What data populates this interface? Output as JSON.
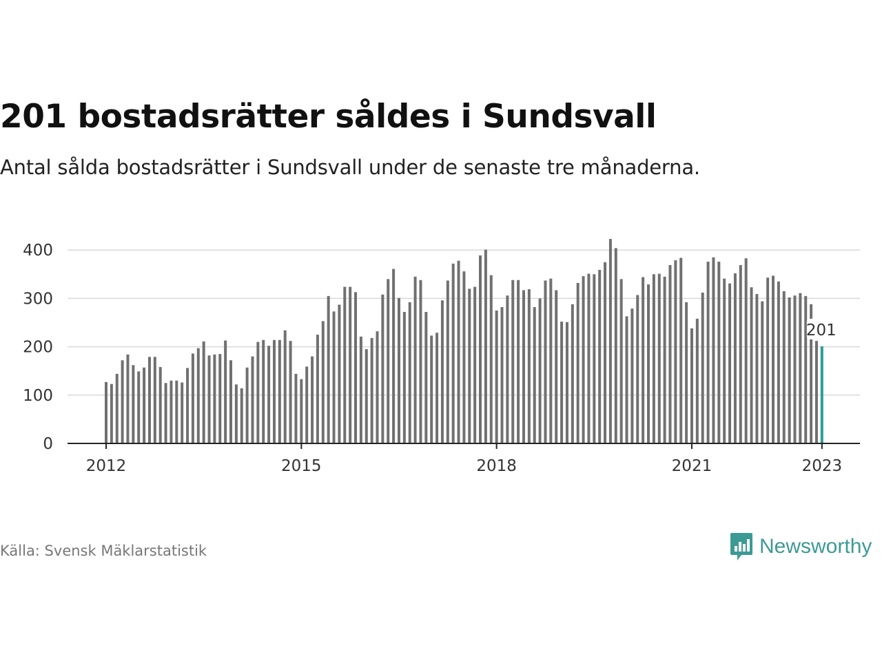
{
  "title": "201 bostadsrätter såldes i Sundsvall",
  "subtitle": "Antal sålda bostadsrätter i Sundsvall under de senaste tre månaderna.",
  "source": "Källa: Svensk Mäklarstatistik",
  "brand": {
    "name": "Newsworthy",
    "icon": "newsworthy-logo-icon",
    "color": "#3c9a94"
  },
  "chart_data": {
    "type": "bar",
    "x_start": "2012-01",
    "x_end": "2023-01",
    "x_ticks": [
      "2012",
      "2015",
      "2018",
      "2021",
      "2023"
    ],
    "y_ticks": [
      "0",
      "100",
      "200",
      "300",
      "400"
    ],
    "ylim": [
      0,
      430
    ],
    "grid": true,
    "bar_color": "#707070",
    "highlight_color": "#2a9d96",
    "annotation": {
      "label": "201",
      "value": 201
    },
    "values": [
      127,
      123,
      144,
      172,
      184,
      162,
      149,
      157,
      179,
      179,
      158,
      125,
      130,
      130,
      126,
      156,
      186,
      197,
      211,
      182,
      184,
      185,
      213,
      172,
      122,
      114,
      157,
      180,
      210,
      214,
      202,
      214,
      214,
      234,
      212,
      144,
      133,
      159,
      180,
      225,
      253,
      305,
      273,
      287,
      324,
      324,
      313,
      221,
      195,
      218,
      232,
      308,
      340,
      361,
      301,
      272,
      292,
      345,
      338,
      272,
      223,
      229,
      296,
      337,
      372,
      378,
      356,
      320,
      324,
      389,
      401,
      348,
      275,
      282,
      306,
      338,
      338,
      317,
      319,
      282,
      300,
      337,
      341,
      317,
      252,
      251,
      288,
      332,
      346,
      351,
      350,
      359,
      375,
      423,
      404,
      340,
      263,
      279,
      307,
      344,
      329,
      350,
      351,
      345,
      369,
      379,
      384,
      292,
      238,
      258,
      312,
      376,
      385,
      376,
      341,
      331,
      352,
      369,
      383,
      323,
      309,
      294,
      343,
      347,
      335,
      315,
      302,
      306,
      311,
      305,
      288,
      212,
      201
    ]
  }
}
